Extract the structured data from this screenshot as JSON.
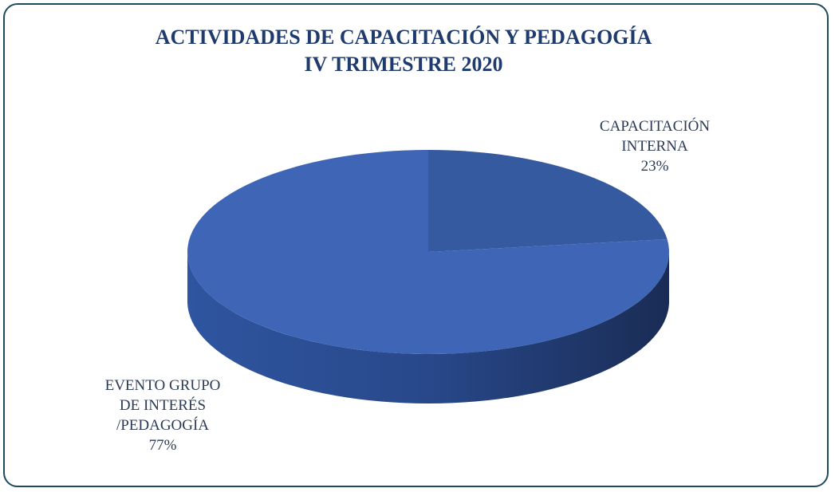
{
  "chart_data": {
    "type": "pie",
    "title": "ACTIVIDADES DE CAPACITACIÓN Y PEDAGOGÍA",
    "subtitle": "IV TRIMESTRE 2020",
    "categories": [
      "CAPACITACIÓN INTERNA",
      "EVENTO GRUPO DE INTERÉS /PEDAGOGÍA"
    ],
    "values": [
      23,
      77
    ],
    "value_labels": [
      "23%",
      "77%"
    ],
    "colors": [
      "#355a9f",
      "#3f66b6"
    ]
  }
}
